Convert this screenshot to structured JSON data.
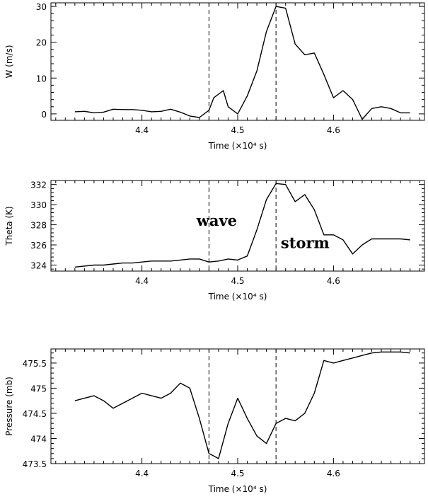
{
  "chart_data": [
    {
      "type": "line",
      "xlabel": "Time  (×10⁴  s)",
      "ylabel": "W  (m/s)",
      "xlim": [
        4.305,
        4.695
      ],
      "ylim": [
        -1.8,
        31
      ],
      "xticks": [
        4.4,
        4.5,
        4.6
      ],
      "xtick_labels": [
        "4.4",
        "4.5",
        "4.6"
      ],
      "yticks": [
        0,
        10,
        20,
        30
      ],
      "ytick_labels": [
        "0",
        "10",
        "20",
        "30"
      ],
      "vlines": [
        4.47,
        4.54
      ],
      "annotations": [],
      "series": [
        {
          "x": [
            4.33,
            4.34,
            4.35,
            4.36,
            4.37,
            4.38,
            4.39,
            4.4,
            4.41,
            4.42,
            4.43,
            4.44,
            4.45,
            4.46,
            4.47,
            4.475,
            4.485,
            4.49,
            4.5,
            4.51,
            4.52,
            4.53,
            4.54,
            4.55,
            4.56,
            4.57,
            4.58,
            4.59,
            4.6,
            4.61,
            4.62,
            4.63,
            4.64,
            4.65,
            4.66,
            4.67,
            4.68
          ],
          "y": [
            0.6,
            0.7,
            0.3,
            0.5,
            1.3,
            1.2,
            1.2,
            1.0,
            0.6,
            0.7,
            1.3,
            0.5,
            -0.6,
            -1.0,
            1.0,
            4.5,
            6.5,
            2.0,
            0.0,
            5.0,
            12.0,
            23.0,
            30.0,
            29.5,
            19.5,
            16.5,
            17.0,
            11.0,
            4.5,
            6.5,
            4.0,
            -1.5,
            1.5,
            2.0,
            1.5,
            0.3,
            0.3
          ]
        }
      ]
    },
    {
      "type": "line",
      "xlabel": "Time  (×10⁴  s)",
      "ylabel": "Theta  (K)",
      "xlim": [
        4.305,
        4.695
      ],
      "ylim": [
        323.4,
        332.4
      ],
      "xticks": [
        4.4,
        4.5,
        4.6
      ],
      "xtick_labels": [
        "4.4",
        "4.5",
        "4.6"
      ],
      "yticks": [
        324,
        326,
        328,
        330,
        332
      ],
      "ytick_labels": [
        "324",
        "326",
        "328",
        "330",
        "332"
      ],
      "vlines": [
        4.47,
        4.54
      ],
      "annotations": [
        {
          "text": "wave",
          "x": 4.457,
          "y": 327.9
        },
        {
          "text": "storm",
          "x": 4.545,
          "y": 325.7
        }
      ],
      "series": [
        {
          "x": [
            4.33,
            4.34,
            4.35,
            4.36,
            4.37,
            4.38,
            4.39,
            4.4,
            4.41,
            4.42,
            4.43,
            4.44,
            4.45,
            4.46,
            4.47,
            4.48,
            4.49,
            4.5,
            4.51,
            4.52,
            4.53,
            4.54,
            4.55,
            4.56,
            4.57,
            4.58,
            4.59,
            4.6,
            4.61,
            4.62,
            4.63,
            4.64,
            4.65,
            4.66,
            4.67,
            4.68
          ],
          "y": [
            323.8,
            323.9,
            324.0,
            324.0,
            324.1,
            324.2,
            324.2,
            324.3,
            324.4,
            324.4,
            324.4,
            324.5,
            324.6,
            324.6,
            324.3,
            324.4,
            324.6,
            324.5,
            324.9,
            327.5,
            330.5,
            332.1,
            332.0,
            330.3,
            331.0,
            329.5,
            327.0,
            327.0,
            326.5,
            325.1,
            326.0,
            326.6,
            326.6,
            326.6,
            326.6,
            326.5
          ]
        }
      ]
    },
    {
      "type": "line",
      "xlabel": "Time  (×10⁴  s)",
      "ylabel": "Pressure  (mb)",
      "xlim": [
        4.305,
        4.695
      ],
      "ylim": [
        473.5,
        475.78
      ],
      "xticks": [
        4.4,
        4.5,
        4.6
      ],
      "xtick_labels": [
        "4.4",
        "4.5",
        "4.6"
      ],
      "yticks": [
        473.5,
        474,
        474.5,
        475,
        475.5
      ],
      "ytick_labels": [
        "473.5",
        "474",
        "474.5",
        "475",
        "475.5"
      ],
      "vlines": [
        4.47,
        4.54
      ],
      "annotations": [],
      "series": [
        {
          "x": [
            4.33,
            4.34,
            4.35,
            4.36,
            4.37,
            4.38,
            4.39,
            4.4,
            4.41,
            4.42,
            4.43,
            4.44,
            4.45,
            4.46,
            4.47,
            4.475,
            4.48,
            4.49,
            4.5,
            4.51,
            4.52,
            4.53,
            4.54,
            4.55,
            4.56,
            4.57,
            4.58,
            4.59,
            4.6,
            4.61,
            4.62,
            4.63,
            4.64,
            4.65,
            4.66,
            4.67,
            4.68
          ],
          "y": [
            474.75,
            474.8,
            474.85,
            474.75,
            474.6,
            474.7,
            474.8,
            474.9,
            474.85,
            474.8,
            474.9,
            475.1,
            475.0,
            474.4,
            473.7,
            473.65,
            473.6,
            474.3,
            474.8,
            474.4,
            474.05,
            473.9,
            474.3,
            474.4,
            474.35,
            474.5,
            474.9,
            475.55,
            475.5,
            475.55,
            475.6,
            475.65,
            475.7,
            475.72,
            475.72,
            475.72,
            475.7
          ]
        }
      ]
    }
  ]
}
